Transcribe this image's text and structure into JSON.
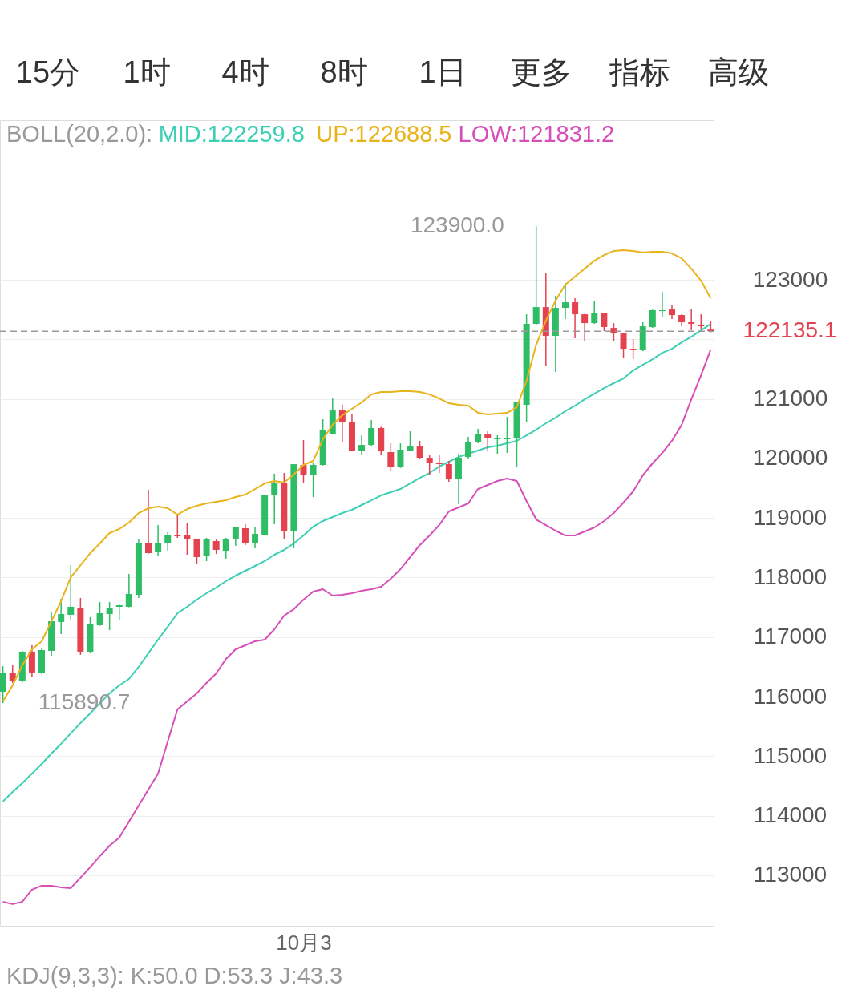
{
  "chart_data": {
    "type": "candlestick",
    "subtitle": "BOLL(20,2.0):",
    "categories": [
      null,
      null,
      null,
      null,
      null,
      null,
      null,
      null,
      null,
      null,
      null,
      null,
      null,
      null,
      null,
      null,
      null,
      null,
      null,
      null,
      null,
      null,
      null,
      null,
      null,
      null,
      null,
      null,
      null,
      null,
      null,
      "10月3",
      null,
      null,
      null,
      null,
      null,
      null,
      null,
      null,
      null,
      null,
      null,
      null,
      null,
      null,
      null,
      null,
      null,
      null,
      null,
      null,
      null,
      null,
      null,
      null,
      null,
      null,
      null,
      null,
      null,
      null,
      null,
      null,
      null,
      null,
      null,
      null,
      null,
      null,
      null,
      null,
      null,
      null
    ],
    "ohlc": [
      [
        116082,
        116512,
        115890.7,
        116391
      ],
      [
        116391,
        116539,
        116230,
        116256
      ],
      [
        116256,
        116768,
        116240,
        116755
      ],
      [
        116755,
        116862,
        116337,
        116405
      ],
      [
        116391,
        116808,
        116380,
        116781
      ],
      [
        116768,
        117414,
        116687,
        117266
      ],
      [
        117253,
        117643,
        117051,
        117387
      ],
      [
        117374,
        118208,
        117293,
        117508
      ],
      [
        117495,
        117656,
        116701,
        116755
      ],
      [
        116755,
        117333,
        116740,
        117212
      ],
      [
        117199,
        117589,
        117190,
        117400
      ],
      [
        117387,
        117589,
        117118,
        117495
      ],
      [
        117508,
        117545,
        117293,
        117535
      ],
      [
        117508,
        118060,
        117500,
        117724
      ],
      [
        117710,
        118653,
        117656,
        118572
      ],
      [
        118572,
        119473,
        118400,
        118410
      ],
      [
        118424,
        118881,
        118370,
        118585
      ],
      [
        118585,
        118760,
        118450,
        118720
      ],
      [
        118707,
        119056,
        118666,
        118693
      ],
      [
        118707,
        118908,
        118383,
        118639
      ],
      [
        118639,
        118653,
        118235,
        118343
      ],
      [
        118370,
        118666,
        118276,
        118639
      ],
      [
        118612,
        118639,
        118397,
        118464
      ],
      [
        118450,
        118666,
        118316,
        118653
      ],
      [
        118639,
        118841,
        118531,
        118841
      ],
      [
        118828,
        118895,
        118545,
        118585
      ],
      [
        118585,
        118854,
        118491,
        118733
      ],
      [
        118720,
        119379,
        118710,
        119379
      ],
      [
        119379,
        119743,
        118895,
        119581
      ],
      [
        119581,
        119756,
        118639,
        118787
      ],
      [
        118774,
        119904,
        118491,
        119904
      ],
      [
        119891,
        120308,
        119581,
        119716
      ],
      [
        119716,
        119918,
        119352,
        119891
      ],
      [
        119891,
        120658,
        119880,
        120483
      ],
      [
        120416,
        121008,
        120400,
        120806
      ],
      [
        120806,
        120900,
        120268,
        120618
      ],
      [
        120618,
        120752,
        120120,
        120133
      ],
      [
        120120,
        120389,
        120052,
        120227
      ],
      [
        120227,
        120645,
        120215,
        120510
      ],
      [
        120510,
        120530,
        120066,
        120120
      ],
      [
        120106,
        120254,
        119797,
        119850
      ],
      [
        119850,
        120254,
        119840,
        120147
      ],
      [
        120133,
        120456,
        120120,
        120214
      ],
      [
        120200,
        120295,
        119985,
        120012
      ],
      [
        120012,
        120052,
        119716,
        119918
      ],
      [
        119918,
        120052,
        119756,
        119904
      ],
      [
        119904,
        119958,
        119608,
        119649
      ],
      [
        119649,
        120079,
        119231,
        120012
      ],
      [
        120025,
        120362,
        119998,
        120281
      ],
      [
        120268,
        120496,
        120254,
        120416
      ],
      [
        120402,
        120456,
        120133,
        120335
      ],
      [
        120322,
        120389,
        120079,
        120348
      ],
      [
        120322,
        120698,
        120093,
        120348
      ],
      [
        120335,
        120941,
        119850,
        120941
      ],
      [
        120900,
        122421,
        120604,
        122260
      ],
      [
        122260,
        123900.0,
        122250,
        122542
      ],
      [
        122542,
        123108,
        121546,
        122058
      ],
      [
        122058,
        122731,
        121452,
        122529
      ],
      [
        122529,
        122946,
        122340,
        122623
      ],
      [
        122623,
        122690,
        122017,
        122421
      ],
      [
        122421,
        122430,
        121964,
        122273
      ],
      [
        122273,
        122637,
        122260,
        122435
      ],
      [
        122435,
        122445,
        122139,
        122206
      ],
      [
        122192,
        122273,
        121964,
        122112
      ],
      [
        122098,
        122110,
        121681,
        121842
      ],
      [
        121842,
        122004,
        121668,
        121829
      ],
      [
        121816,
        122287,
        121800,
        122219
      ],
      [
        122206,
        122500,
        122192,
        122489
      ],
      [
        122475,
        122798,
        122367,
        122489
      ],
      [
        122502,
        122569,
        122340,
        122408
      ],
      [
        122408,
        122421,
        122219,
        122287
      ],
      [
        122287,
        122515,
        122152,
        122260
      ],
      [
        122246,
        122421,
        122179,
        122219
      ],
      [
        122165,
        122300,
        122120,
        122135.1
      ]
    ],
    "colors": [
      "#2ebd65",
      "#e5424f",
      "#2ebd65",
      "#e5424f",
      "#2ebd65",
      "#2ebd65",
      "#2ebd65",
      "#2ebd65",
      "#e5424f",
      "#2ebd65",
      "#2ebd65",
      "#2ebd65",
      "#2ebd65",
      "#2ebd65",
      "#2ebd65",
      "#e5424f",
      "#2ebd65",
      "#2ebd65",
      "#e5424f",
      "#e5424f",
      "#e5424f",
      "#2ebd65",
      "#e5424f",
      "#2ebd65",
      "#2ebd65",
      "#e5424f",
      "#2ebd65",
      "#2ebd65",
      "#2ebd65",
      "#e5424f",
      "#2ebd65",
      "#e5424f",
      "#2ebd65",
      "#2ebd65",
      "#2ebd65",
      "#e5424f",
      "#e5424f",
      "#2ebd65",
      "#2ebd65",
      "#e5424f",
      "#e5424f",
      "#2ebd65",
      "#2ebd65",
      "#e5424f",
      "#e5424f",
      "#e5424f",
      "#e5424f",
      "#2ebd65",
      "#2ebd65",
      "#2ebd65",
      "#e5424f",
      "#2ebd65",
      "#2ebd65",
      "#2ebd65",
      "#2ebd65",
      "#2ebd65",
      "#e5424f",
      "#2ebd65",
      "#2ebd65",
      "#e5424f",
      "#e5424f",
      "#2ebd65",
      "#e5424f",
      "#e5424f",
      "#e5424f",
      "#e5424f",
      "#2ebd65",
      "#2ebd65",
      "#2ebd65",
      "#e5424f",
      "#e5424f",
      "#e5424f",
      "#e5424f",
      "#e5424f"
    ],
    "series": [
      {
        "type": "line",
        "name": "MID:122259.8",
        "color": "#3ccfb4",
        "values": [
          114238,
          114399,
          114547,
          114709,
          114870,
          115045,
          115207,
          115382,
          115557,
          115718,
          115893,
          116055,
          116189,
          116297,
          116499,
          116728,
          116956,
          117172,
          117401,
          117508,
          117629,
          117737,
          117831,
          117939,
          118033,
          118114,
          118195,
          118276,
          118383,
          118464,
          118572,
          118706,
          118854,
          118949,
          119016,
          119083,
          119137,
          119218,
          119298,
          119379,
          119433,
          119487,
          119581,
          119675,
          119756,
          119864,
          119945,
          120025,
          120079,
          120133,
          120187,
          120214,
          120254,
          120295,
          120389,
          120483,
          120591,
          120685,
          120793,
          120887,
          120994,
          121089,
          121183,
          121264,
          121344,
          121479,
          121573,
          121667,
          121775,
          121842,
          121950,
          122044,
          122152,
          122259.8
        ]
      },
      {
        "type": "line",
        "name": "UP:122688.5",
        "color": "#e9b31c",
        "values": [
          115920,
          116189,
          116526,
          116795,
          116930,
          117266,
          117603,
          118006,
          118208,
          118410,
          118572,
          118747,
          118814,
          118922,
          119083,
          119164,
          119191,
          119164,
          119056,
          119150,
          119204,
          119245,
          119272,
          119298,
          119352,
          119393,
          119487,
          119581,
          119622,
          119595,
          119729,
          119891,
          119958,
          120321,
          120564,
          120725,
          120833,
          120941,
          121075,
          121116,
          121116,
          121129,
          121129,
          121116,
          121075,
          121008,
          120927,
          120900,
          120887,
          120766,
          120739,
          120752,
          120766,
          120860,
          121304,
          121910,
          122314,
          122650,
          122919,
          123054,
          123188,
          123323,
          123417,
          123485,
          123498,
          123485,
          123458,
          123471,
          123471,
          123444,
          123363,
          123188,
          122987,
          122688.5
        ]
      },
      {
        "type": "line",
        "name": "LOW:121831.2",
        "color": "#d64fb8",
        "values": [
          112555,
          112515,
          112555,
          112757,
          112824,
          112824,
          112797,
          112784,
          112959,
          113134,
          113322,
          113497,
          113632,
          113901,
          114170,
          114439,
          114709,
          115247,
          115785,
          115920,
          116055,
          116230,
          116391,
          116633,
          116795,
          116862,
          116930,
          116956,
          117131,
          117360,
          117468,
          117629,
          117764,
          117804,
          117697,
          117710,
          117737,
          117778,
          117804,
          117845,
          117979,
          118141,
          118343,
          118545,
          118706,
          118881,
          119110,
          119177,
          119245,
          119487,
          119554,
          119622,
          119662,
          119622,
          119285,
          118975,
          118881,
          118787,
          118706,
          118706,
          118774,
          118841,
          118949,
          119083,
          119258,
          119447,
          119716,
          119918,
          120093,
          120295,
          120564,
          120994,
          121398,
          121831.2
        ]
      }
    ],
    "ylim": [
      112150,
      125680
    ],
    "yticks": [
      113000,
      114000,
      115000,
      116000,
      117000,
      118000,
      119000,
      120000,
      121000,
      {
        "value": 122000,
        "label": null
      },
      123000
    ],
    "grid": "y",
    "ref_lines": [
      {
        "axis": "y",
        "value": 122135.1,
        "label": "122135.1",
        "line_style": "dashed",
        "color": "#999999"
      }
    ],
    "annotations": [
      "15分",
      "1时",
      "4时",
      "8时",
      "1日",
      "更多",
      "指标",
      "高级",
      "KDJ(9,3,3): K:50.0 D:53.3 J:43.3",
      "123900.0",
      "115890.7"
    ]
  }
}
